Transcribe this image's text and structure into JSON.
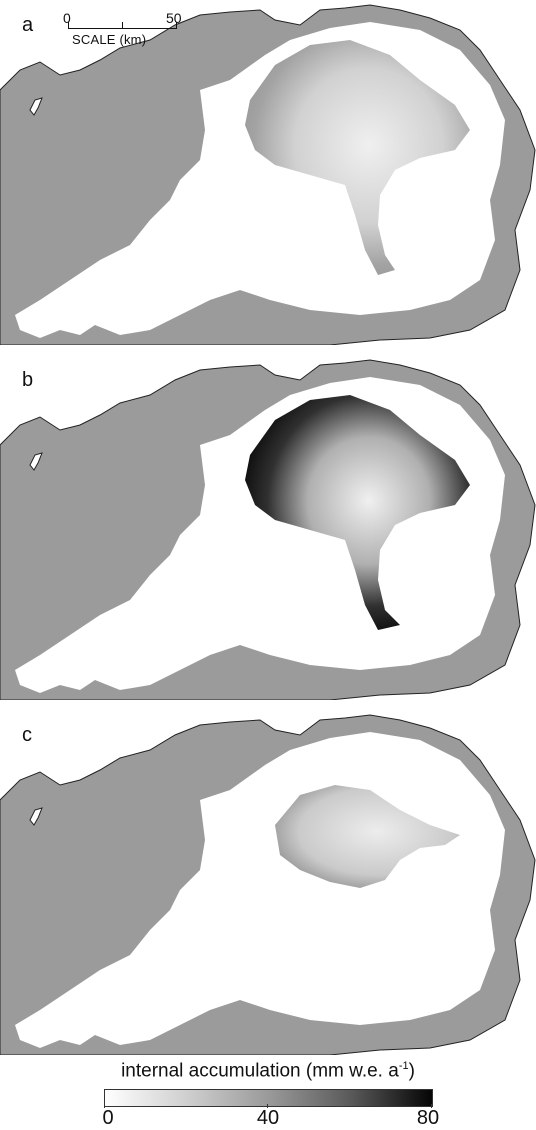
{
  "panels": [
    {
      "label": "a",
      "intensity": 0.62
    },
    {
      "label": "b",
      "intensity": 1.0
    },
    {
      "label": "c",
      "intensity": 0.45
    }
  ],
  "scalebar": {
    "start": "0",
    "end": "50",
    "title": "SCALE (km)"
  },
  "colorbar": {
    "title": "internal accumulation (mm w.e. a",
    "title_sup": "-1",
    "title_close": ")",
    "ticks": [
      "0",
      "40",
      "80"
    ],
    "range": [
      0,
      80
    ]
  },
  "colors": {
    "land": "#9b9b9b",
    "ice": "#ffffff",
    "coast": "#222222"
  }
}
